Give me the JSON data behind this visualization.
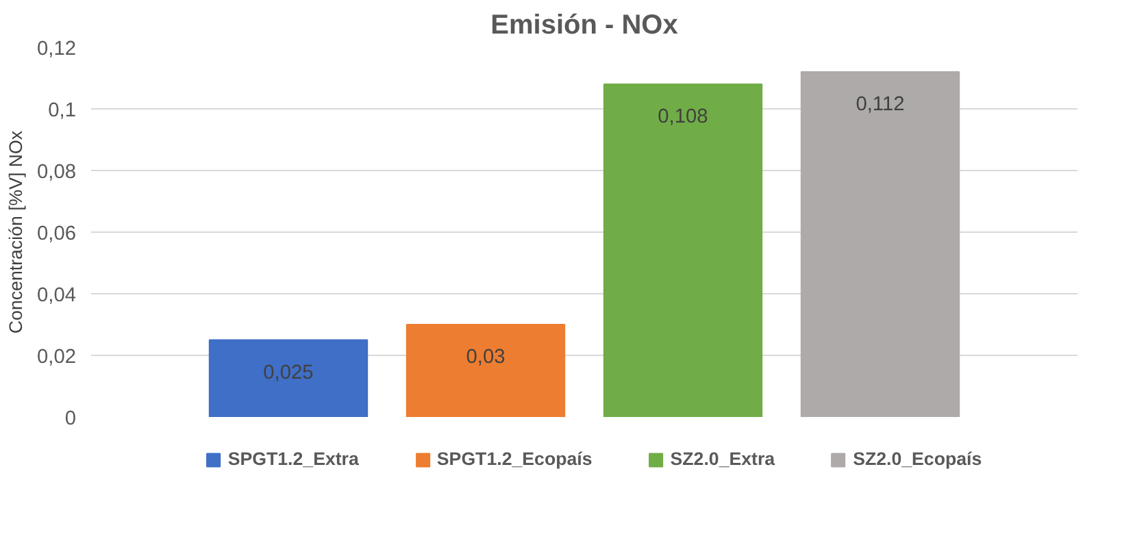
{
  "chart_data": {
    "type": "bar",
    "title": "Emisión - NOx",
    "ylabel": "Concentración [%V] NOx",
    "categories": [
      null
    ],
    "series": [
      {
        "name": "SPGT1.2_Extra",
        "color": "#3f6fc6",
        "values": [
          0.025
        ],
        "value_labels": [
          "0,025"
        ]
      },
      {
        "name": "SPGT1.2_Ecopaís",
        "color": "#ed7d31",
        "values": [
          0.03
        ],
        "value_labels": [
          "0,03"
        ]
      },
      {
        "name": "SZ2.0_Extra",
        "color": "#70ad47",
        "values": [
          0.108
        ],
        "value_labels": [
          "0,108"
        ]
      },
      {
        "name": "SZ2.0_Ecopaís",
        "color": "#aeaaaa",
        "values": [
          0.112
        ],
        "value_labels": [
          "0,112"
        ]
      }
    ],
    "ylim": [
      0,
      0.12
    ],
    "yticks": [
      0,
      {
        "value": 0.02,
        "label": "0,02"
      },
      {
        "value": 0.04,
        "label": "0,04"
      },
      {
        "value": 0.06,
        "label": "0,06"
      },
      {
        "value": 0.08,
        "label": "0,08"
      },
      {
        "value": 0.1,
        "label": "0,1"
      },
      {
        "value": 0.12,
        "label": "0,12"
      }
    ],
    "grid": "y",
    "legend": "bottom",
    "tick_labels": "y"
  }
}
